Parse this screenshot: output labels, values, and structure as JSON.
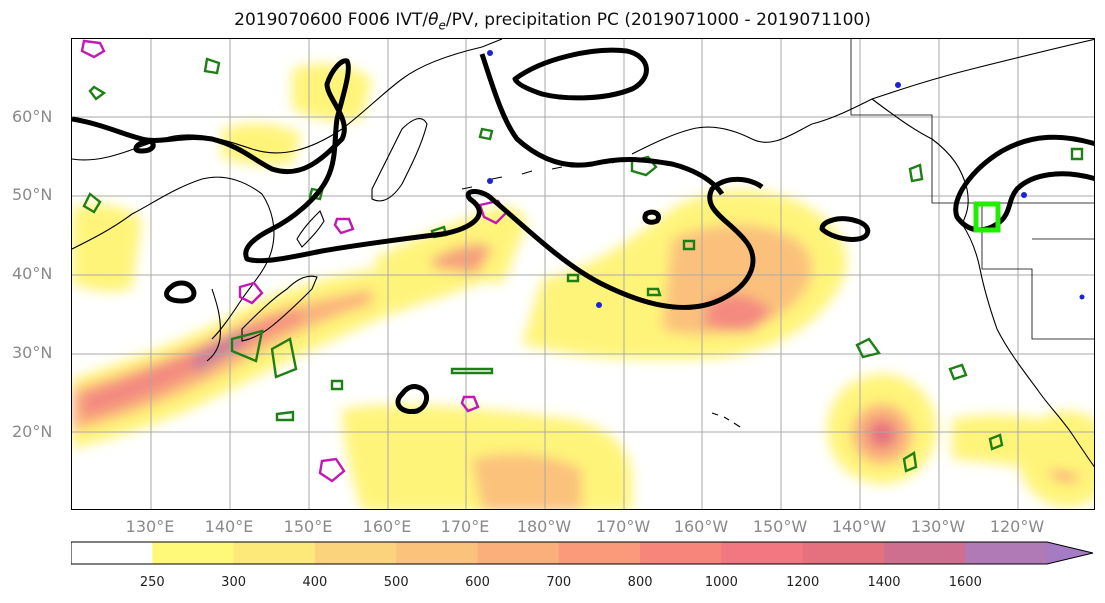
{
  "title": {
    "prefix": "2019070600 F006 IVT/",
    "theta": "θ",
    "theta_sub": "e",
    "suffix": "/PV, precipitation PC (2019071000 - 2019071100)"
  },
  "axes": {
    "lat_labels": [
      "60°N",
      "50°N",
      "40°N",
      "30°N",
      "20°N"
    ],
    "lon_labels": [
      "130°E",
      "140°E",
      "150°E",
      "160°E",
      "170°E",
      "180°W",
      "170°W",
      "160°W",
      "150°W",
      "140°W",
      "130°W",
      "120°W"
    ]
  },
  "colorbar": {
    "levels": [
      "250",
      "300",
      "400",
      "500",
      "600",
      "700",
      "800",
      "1000",
      "1200",
      "1400",
      "1600"
    ],
    "colors": [
      "#fff97a",
      "#fde87a",
      "#fbd37c",
      "#fbc27c",
      "#fbb07b",
      "#fa9a7a",
      "#f8857b",
      "#f27780",
      "#e5717f",
      "#cf6f8f",
      "#b07ab7",
      "#a57cc3"
    ]
  },
  "legend_colors": {
    "pv_contour": "#000000",
    "theta_e_contour_green": "#1d7f16",
    "theta_e_contour_magenta": "#c219b5",
    "target_box": "#22ee00"
  }
}
